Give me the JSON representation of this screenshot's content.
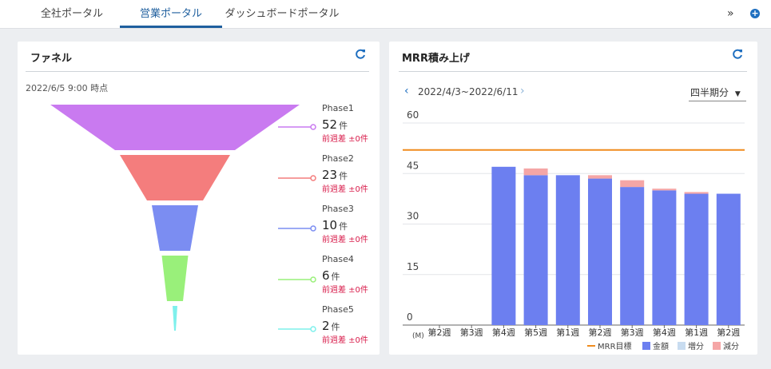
{
  "nav": {
    "tabs": [
      {
        "label": "全社ポータル"
      },
      {
        "label": "営業ポータル"
      },
      {
        "label": "ダッシュボードポータル"
      }
    ],
    "more_icon": "double-chevron-right-icon",
    "add_icon": "plus-circle-icon"
  },
  "funnel": {
    "title": "ファネル",
    "timestamp": "2022/6/5 9:00 時点",
    "unit": "件",
    "phases": [
      {
        "name": "Phase1",
        "count": "52",
        "diff": "前週差 ±0件",
        "color": "#c97af0"
      },
      {
        "name": "Phase2",
        "count": "23",
        "diff": "前週差 ±0件",
        "color": "#f47d7d"
      },
      {
        "name": "Phase3",
        "count": "10",
        "diff": "前週差 ±0件",
        "color": "#7b8df2"
      },
      {
        "name": "Phase4",
        "count": "6",
        "diff": "前週差 ±0件",
        "color": "#99f07a"
      },
      {
        "name": "Phase5",
        "count": "2",
        "diff": "前週差 ±0件",
        "color": "#7ef0ec"
      }
    ]
  },
  "mrr": {
    "title": "MRR積み上げ",
    "period_label": "2022/4/3~2022/6/11",
    "period_select": "四半期分",
    "colors": {
      "target": "#f08c1e",
      "amount": "#6c7ff0",
      "increase": "#c8dcf0",
      "decrease": "#f5a6a6"
    }
  },
  "chart_data": {
    "type": "bar",
    "stacked": true,
    "categories": [
      "第2週",
      "第3週",
      "第4週",
      "第5週",
      "第1週",
      "第2週",
      "第3週",
      "第4週",
      "第1週",
      "第2週"
    ],
    "series": [
      {
        "name": "金額",
        "values": [
          0,
          0,
          47,
          44.5,
          44.5,
          43.5,
          41,
          40,
          39,
          39
        ]
      },
      {
        "name": "増分",
        "values": [
          0,
          0,
          0,
          0,
          0,
          0,
          0,
          0,
          0,
          0
        ]
      },
      {
        "name": "減分",
        "values": [
          0,
          0,
          0,
          2,
          0,
          1,
          2,
          0.5,
          0.5,
          0
        ]
      }
    ],
    "target": {
      "name": "MRR目標",
      "value": 52
    },
    "yticks": [
      "0",
      "15",
      "30",
      "45",
      "60"
    ],
    "ylim": [
      0,
      60
    ],
    "yunit": "(M)",
    "legend_position": "bottom-right"
  }
}
